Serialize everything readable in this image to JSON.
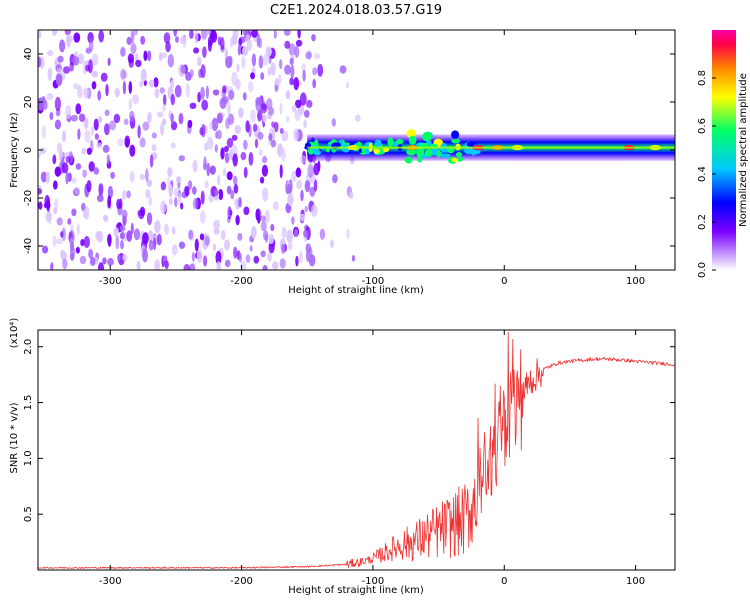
{
  "title": "C2E1.2024.018.03.57.G19",
  "chart_data": [
    {
      "type": "heatmap",
      "xlabel": "Height of straight line (km)",
      "ylabel": "Frequency (Hz)",
      "xlim": [
        -355,
        130
      ],
      "ylim": [
        -50,
        50
      ],
      "xticks": [
        -300,
        -200,
        -100,
        0,
        100
      ],
      "xtick_labels": [
        "-300",
        "-200",
        "-100",
        "0",
        "100"
      ],
      "yticks": [
        -40,
        -20,
        0,
        20,
        40
      ],
      "ytick_labels": [
        "-40",
        "-20",
        "0",
        "20",
        "40"
      ],
      "colorbar": {
        "label": "Normalized spectral amplitude",
        "range": [
          0,
          1
        ],
        "ticks": [
          0.0,
          0.2,
          0.4,
          0.6,
          0.8
        ],
        "tick_labels": [
          "0.0",
          "0.2",
          "0.4",
          "0.6",
          "0.8"
        ],
        "colors": [
          "#ffffff",
          "#7a00ff",
          "#0000ff",
          "#00c8ff",
          "#00ff66",
          "#ffff00",
          "#ff8800",
          "#ff0044"
        ]
      },
      "regions": [
        {
          "name": "noise",
          "x_range": [
            -355,
            -140
          ],
          "freq_range": [
            -50,
            50
          ],
          "amplitude_range": [
            0.05,
            0.35
          ]
        },
        {
          "name": "sparse-noise",
          "x_range": [
            -140,
            -110
          ],
          "freq_range": [
            -50,
            50
          ],
          "amplitude_range": [
            0.05,
            0.2
          ]
        },
        {
          "name": "signal-band",
          "x_range": [
            -150,
            130
          ],
          "freq_center": 1,
          "freq_halfwidth": 2.5,
          "peak_amplitude": 0.95
        }
      ],
      "grid": false
    },
    {
      "type": "line",
      "xlabel": "Height of straight line (km)",
      "ylabel": "SNR (10 * v/v)",
      "y_multiplier": "(x10⁴)",
      "xlim": [
        -355,
        130
      ],
      "ylim": [
        0,
        2.15
      ],
      "xticks": [
        -300,
        -200,
        -100,
        0,
        100
      ],
      "xtick_labels": [
        "-300",
        "-200",
        "-100",
        "0",
        "100"
      ],
      "yticks": [
        0.5,
        1.0,
        1.5,
        2.0
      ],
      "ytick_labels": [
        "0.5",
        "1.0",
        "1.5",
        "2.0"
      ],
      "color": "#ee3333",
      "series": [
        {
          "x": [
            -355,
            -300,
            -250,
            -200,
            -150,
            -120,
            -110,
            -100,
            -90,
            -80,
            -70,
            -60,
            -50,
            -40,
            -30,
            -25,
            -20,
            -15,
            -10,
            -5,
            0,
            5,
            10,
            15,
            20,
            25,
            30,
            40,
            50,
            60,
            70,
            80,
            90,
            100,
            110,
            120,
            130
          ],
          "y": [
            0.02,
            0.02,
            0.02,
            0.02,
            0.03,
            0.05,
            0.07,
            0.1,
            0.16,
            0.22,
            0.25,
            0.3,
            0.35,
            0.4,
            0.45,
            0.55,
            0.7,
            0.9,
            1.05,
            1.15,
            1.25,
            1.4,
            1.5,
            1.6,
            1.7,
            1.75,
            1.8,
            1.85,
            1.87,
            1.88,
            1.89,
            1.89,
            1.88,
            1.87,
            1.86,
            1.85,
            1.84
          ]
        }
      ],
      "grid": false
    }
  ]
}
